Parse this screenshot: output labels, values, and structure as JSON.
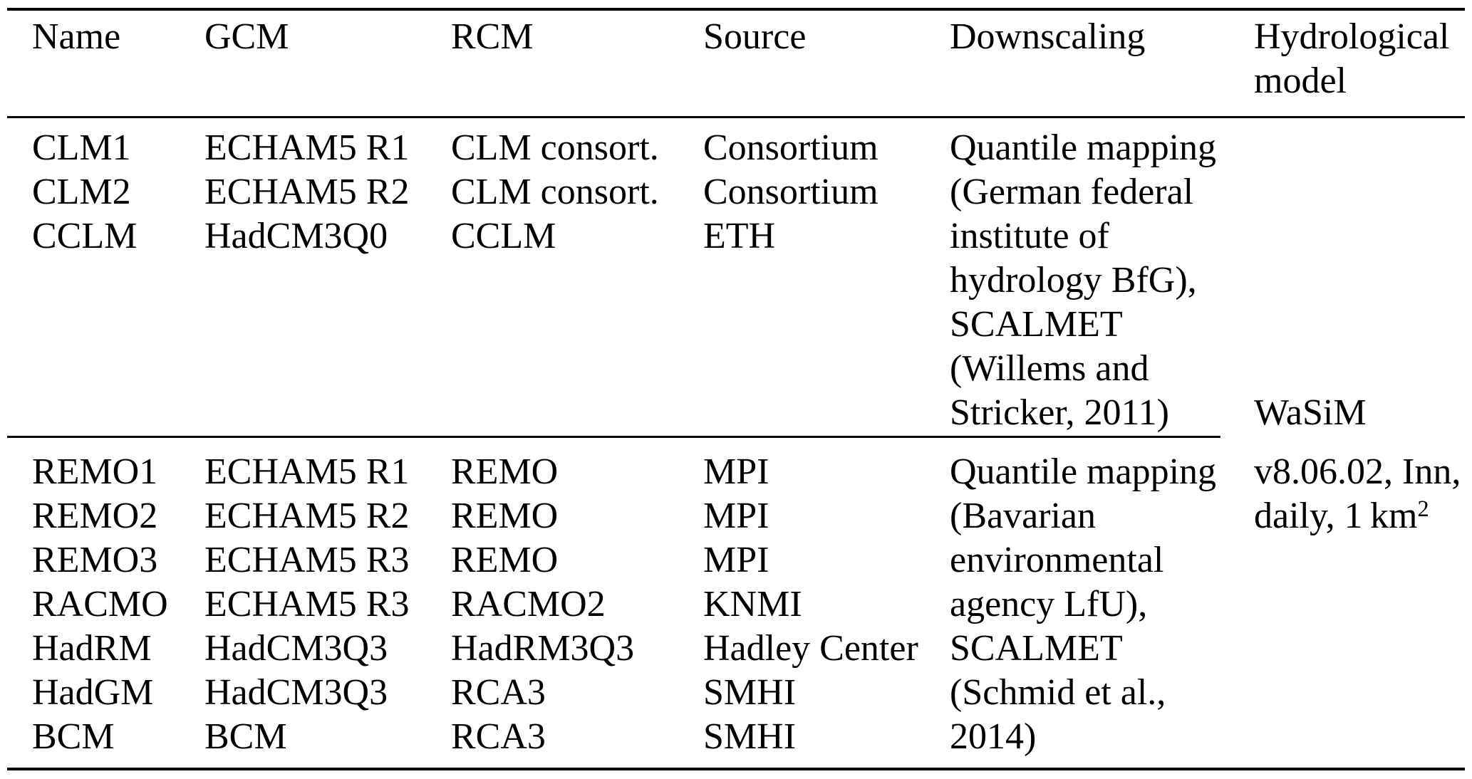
{
  "table": {
    "headers": [
      "Name",
      "GCM",
      "RCM",
      "Source",
      "Downscaling",
      "Hydrological model"
    ],
    "groups": [
      {
        "rows": [
          {
            "name": "CLM1",
            "gcm": "ECHAM5 R1",
            "rcm": "CLM consort.",
            "source": "Consortium"
          },
          {
            "name": "CLM2",
            "gcm": "ECHAM5 R2",
            "rcm": "CLM consort.",
            "source": "Consortium"
          },
          {
            "name": "CCLM",
            "gcm": "HadCM3Q0",
            "rcm": "CCLM",
            "source": "ETH"
          }
        ],
        "downscaling_lines": [
          "Quantile mapping",
          "(German federal",
          "institute of",
          "hydrology BfG),",
          "SCALMET",
          "(Willems and",
          "Stricker, 2011)"
        ]
      },
      {
        "rows": [
          {
            "name": "REMO1",
            "gcm": "ECHAM5 R1",
            "rcm": "REMO",
            "source": "MPI"
          },
          {
            "name": "REMO2",
            "gcm": "ECHAM5 R2",
            "rcm": "REMO",
            "source": "MPI"
          },
          {
            "name": "REMO3",
            "gcm": "ECHAM5 R3",
            "rcm": "REMO",
            "source": "MPI"
          },
          {
            "name": "RACMO",
            "gcm": "ECHAM5 R3",
            "rcm": "RACMO2",
            "source": "KNMI"
          },
          {
            "name": "HadRM",
            "gcm": "HadCM3Q3",
            "rcm": "HadRM3Q3",
            "source": "Hadley Center"
          },
          {
            "name": "HadGM",
            "gcm": "HadCM3Q3",
            "rcm": "RCA3",
            "source": "SMHI"
          },
          {
            "name": "BCM",
            "gcm": "BCM",
            "rcm": "RCA3",
            "source": "SMHI"
          }
        ],
        "downscaling_lines": [
          "Quantile mapping",
          "(Bavarian",
          "environmental",
          "agency LfU),",
          "SCALMET",
          "(Schmid et al.,",
          "2014)"
        ]
      }
    ],
    "hydrological_model": {
      "line1": "WaSiM",
      "line2": "v8.06.02, Inn,",
      "line3_base": "daily, 1 km",
      "line3_sup": "2"
    },
    "text_color": "#000000",
    "background_color": "#ffffff"
  }
}
